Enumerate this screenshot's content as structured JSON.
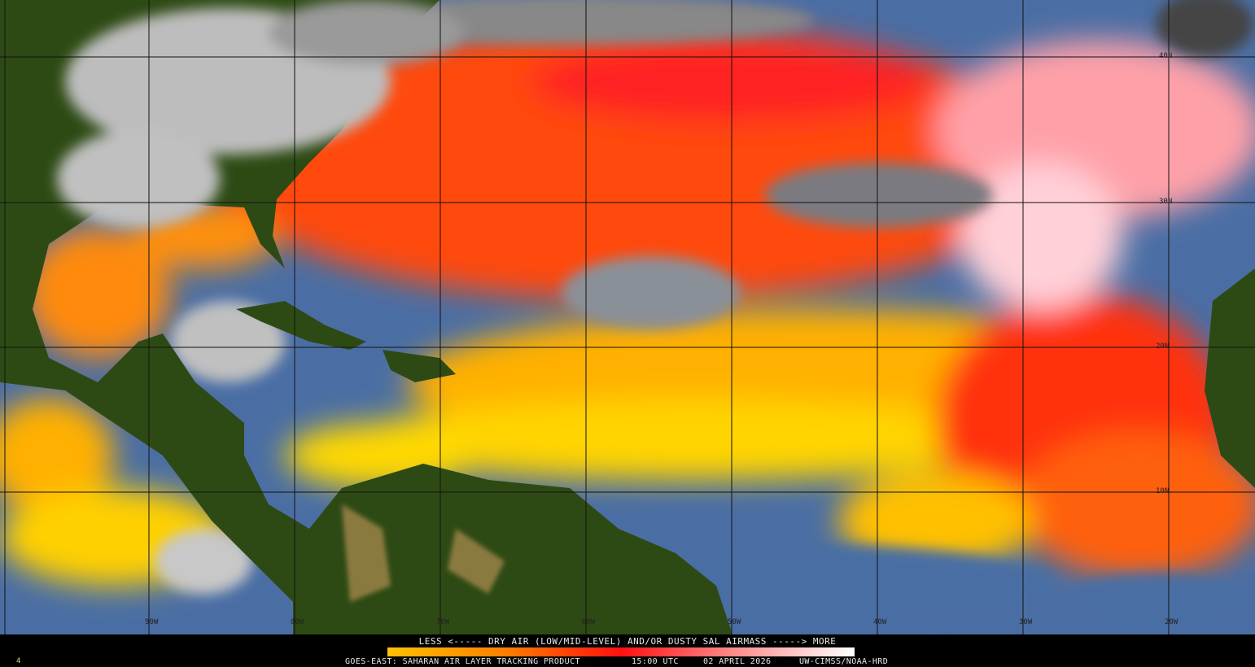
{
  "legend": {
    "title": "LESS <----- DRY AIR (LOW/MID-LEVEL) AND/OR DUSTY SAL AIRMASS -----> MORE",
    "colorbar_colors": [
      "#ffc000",
      "#ff8000",
      "#ff1010",
      "#ff9090",
      "#ffffff"
    ],
    "product": "GOES-EAST: SAHARAN AIR LAYER TRACKING PRODUCT",
    "time": "15:00 UTC",
    "date": "02 APRIL 2026",
    "credit": "UW-CIMSS/NOAA-HRD",
    "frame": "4"
  },
  "map": {
    "latitude_labels": [
      "40N",
      "30N",
      "20N",
      "10N"
    ],
    "longitude_labels": [
      "90W",
      "80W",
      "70W",
      "60W",
      "50W",
      "40W",
      "30W",
      "20W"
    ],
    "colors": {
      "land": "#2e4a14",
      "ocean": "#4a70a8",
      "cloud": "#c8c8c8",
      "dry_low": "#ffd800",
      "dry_mid": "#ff8c00",
      "dry_high": "#ff2020",
      "dry_max": "#ffb0b8"
    }
  }
}
